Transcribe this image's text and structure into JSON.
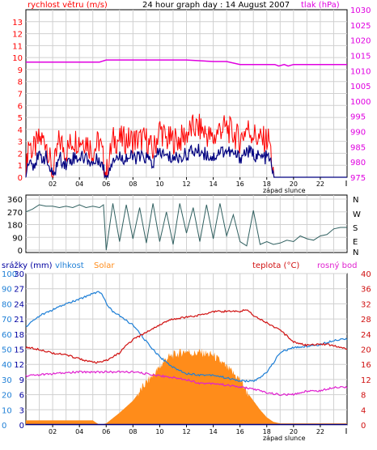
{
  "colors": {
    "frame": "#000000",
    "grid": "#d0d0d0",
    "wind_gust": "#ff0000",
    "wind_avg": "#000080",
    "pressure": "#e000e0",
    "direction": "#306060",
    "humidity": "#1e7fd6",
    "solar": "#ff8c1a",
    "temperature": "#d01010",
    "dewpoint": "#e020d0",
    "rain": "#000080",
    "left_axis_text": "#ff0000",
    "right_axis_text": "#e000e0",
    "humidity_axis_text": "#1e7fd6",
    "temp_axis_text": "#d01010",
    "rain_axis_text": "#0000a0"
  },
  "header": {
    "left_label": "rychlost větru (m/s)",
    "title": "24 hour graph day : 14 August 2007",
    "right_label": "tlak (hPa)"
  },
  "time_axis": {
    "labels": [
      "02",
      "04",
      "06",
      "08",
      "10",
      "12",
      "14",
      "16",
      "18",
      "20",
      "22"
    ],
    "sunset_label": "západ slunce"
  },
  "direction_labels": [
    "N",
    "W",
    "S",
    "E",
    "N"
  ],
  "legend3": {
    "rain": "srážky (mm)",
    "humidity": "vlhkost",
    "solar": "Solar",
    "temperature": "teplota (°C)",
    "dewpoint": "rosný bod"
  },
  "chart_data": [
    {
      "type": "line",
      "title": "24 hour graph day : 14 August 2007",
      "ylabel": "rychlost větru (m/s)",
      "ylabel_right": "tlak (hPa)",
      "ylim": [
        0,
        14
      ],
      "ylim_right": [
        975,
        1030
      ],
      "yticks": [
        0,
        1,
        2,
        3,
        4,
        5,
        6,
        7,
        8,
        9,
        10,
        11,
        12,
        13
      ],
      "yticks_right": [
        975,
        980,
        985,
        990,
        995,
        1000,
        1005,
        1010,
        1015,
        1020,
        1025,
        1030
      ],
      "x_hours": [
        0,
        24
      ],
      "series": [
        {
          "name": "rychlost větru (m/s)",
          "hours": [
            0,
            0.2,
            0.5,
            1,
            1.5,
            2,
            2.5,
            3,
            3.5,
            4,
            4.5,
            5,
            5.5,
            6,
            6.5,
            7,
            7.5,
            8,
            8.5,
            9,
            9.5,
            10,
            10.5,
            11,
            11.5,
            12,
            12.5,
            13,
            13.5,
            14,
            14.5,
            15,
            15.5,
            16,
            16.5,
            17,
            17.5,
            18,
            18.2,
            18.5,
            19,
            20,
            21,
            22,
            23,
            24
          ],
          "values": [
            0,
            3,
            2,
            3,
            3,
            0,
            3,
            2,
            3,
            3,
            3,
            2,
            3,
            0,
            3,
            3,
            3,
            3,
            3,
            3,
            2,
            4,
            3,
            3,
            3,
            3.5,
            4,
            4,
            3.5,
            3,
            4,
            4,
            3.5,
            3,
            4,
            3.5,
            3,
            3,
            3,
            0,
            0,
            0,
            0,
            0,
            0,
            0
          ]
        },
        {
          "name": "tlak (hPa)",
          "hours": [
            0,
            5.5,
            6,
            9,
            10,
            12,
            14,
            15,
            16,
            17,
            18,
            18.6,
            18.9,
            19.3,
            19.6,
            20,
            24
          ],
          "values": [
            1012.8,
            1012.8,
            1013.5,
            1013.5,
            1013.5,
            1013.5,
            1013.0,
            1013.0,
            1012.0,
            1012.0,
            1012.0,
            1012.0,
            1011.5,
            1012.0,
            1011.5,
            1012,
            1012
          ]
        }
      ]
    },
    {
      "type": "line",
      "title": "",
      "ylim": [
        0,
        360
      ],
      "yticks": [
        0,
        90,
        180,
        270,
        360
      ],
      "x_hours": [
        0,
        24
      ],
      "series": [
        {
          "name": "",
          "hours": [
            0,
            0.5,
            1,
            1.5,
            2,
            2.5,
            3,
            3.5,
            4,
            4.5,
            5,
            5.5,
            5.8,
            6,
            6.5,
            7,
            7.5,
            8,
            8.5,
            9,
            9.5,
            10,
            10.5,
            11,
            11.5,
            12,
            12.5,
            13,
            13.5,
            14,
            14.5,
            15,
            15.5,
            16,
            16.5,
            17,
            17.5,
            18,
            18.5,
            19,
            19.5,
            20,
            20.5,
            21,
            21.5,
            22,
            22.5,
            23,
            23.5,
            24
          ],
          "values": [
            270,
            290,
            320,
            310,
            310,
            300,
            310,
            300,
            320,
            300,
            310,
            300,
            320,
            0,
            330,
            60,
            320,
            80,
            300,
            50,
            330,
            60,
            270,
            40,
            330,
            120,
            300,
            60,
            320,
            80,
            330,
            100,
            250,
            60,
            30,
            280,
            40,
            60,
            40,
            50,
            70,
            60,
            100,
            80,
            70,
            100,
            110,
            150,
            160,
            160
          ]
        }
      ]
    },
    {
      "type": "line",
      "title": "",
      "ylim_rain": [
        0,
        30
      ],
      "ylim_humidity": [
        0,
        100
      ],
      "ylim_temperature": [
        0,
        40
      ],
      "yticks_rain": [
        0,
        3,
        6,
        9,
        12,
        15,
        18,
        21,
        24,
        27,
        30
      ],
      "yticks_humidity": [
        0,
        10,
        20,
        30,
        40,
        50,
        60,
        70,
        80,
        90,
        100
      ],
      "yticks_temperature": [
        0,
        4,
        8,
        12,
        16,
        20,
        24,
        28,
        32,
        36,
        40
      ],
      "x_hours": [
        0,
        24
      ],
      "series": [
        {
          "name": "vlhkost",
          "hours": [
            0,
            1,
            2,
            3,
            4,
            5,
            5.5,
            5.8,
            6,
            6.5,
            7,
            7.5,
            8,
            9,
            10,
            11,
            12,
            13,
            14,
            15,
            16,
            17,
            17.5,
            18,
            18.5,
            19,
            20,
            21,
            22,
            23,
            24
          ],
          "values": [
            65,
            72,
            76,
            80,
            83,
            87,
            88,
            85,
            80,
            75,
            72,
            69,
            66,
            55,
            45,
            38,
            34,
            33,
            33,
            31,
            29,
            29,
            31,
            35,
            41,
            48,
            51,
            52,
            53,
            56,
            57
          ]
        },
        {
          "name": "Solar",
          "hours": [
            0,
            5,
            5.5,
            6,
            7,
            8,
            9,
            10,
            10.5,
            11,
            12,
            12.5,
            13,
            14,
            15,
            16,
            16.5,
            17,
            17.5,
            18,
            18.5,
            19,
            20,
            21,
            22,
            23,
            24
          ],
          "values": [
            3,
            3,
            0,
            1,
            8,
            16,
            28,
            38,
            44,
            46,
            49,
            47,
            48,
            46,
            38,
            30,
            22,
            16,
            10,
            5,
            2,
            1,
            1,
            1,
            1,
            1,
            1
          ]
        },
        {
          "name": "teplota (°C)",
          "hours": [
            0,
            1,
            2,
            3,
            4,
            5,
            5.5,
            6,
            6.5,
            7,
            7.5,
            8,
            9,
            10,
            11,
            12,
            13,
            14,
            15,
            16,
            16.5,
            17,
            18,
            19,
            20,
            21,
            22,
            23,
            24
          ],
          "values": [
            20.5,
            20,
            19,
            18.5,
            17.5,
            16.5,
            16.5,
            17,
            18,
            19,
            21,
            22.5,
            24.5,
            26.5,
            28,
            28.5,
            29,
            30,
            30,
            30,
            30.5,
            29,
            27,
            25,
            22,
            21,
            21.5,
            21,
            20
          ]
        },
        {
          "name": "rosný bod",
          "hours": [
            0,
            2,
            4,
            5,
            6,
            7,
            8,
            9,
            10,
            11,
            12,
            13,
            14,
            15,
            16,
            17,
            18,
            19,
            20,
            21,
            22,
            23,
            24
          ],
          "values": [
            13,
            13.5,
            14,
            14,
            14,
            14,
            14,
            13.5,
            13,
            12.5,
            12,
            11,
            11,
            10.5,
            10,
            9.5,
            8.5,
            8,
            8,
            9,
            9,
            10,
            10
          ]
        },
        {
          "name": "srážky (mm)",
          "hours": [
            0,
            24
          ],
          "values": [
            0,
            0
          ]
        }
      ]
    }
  ]
}
